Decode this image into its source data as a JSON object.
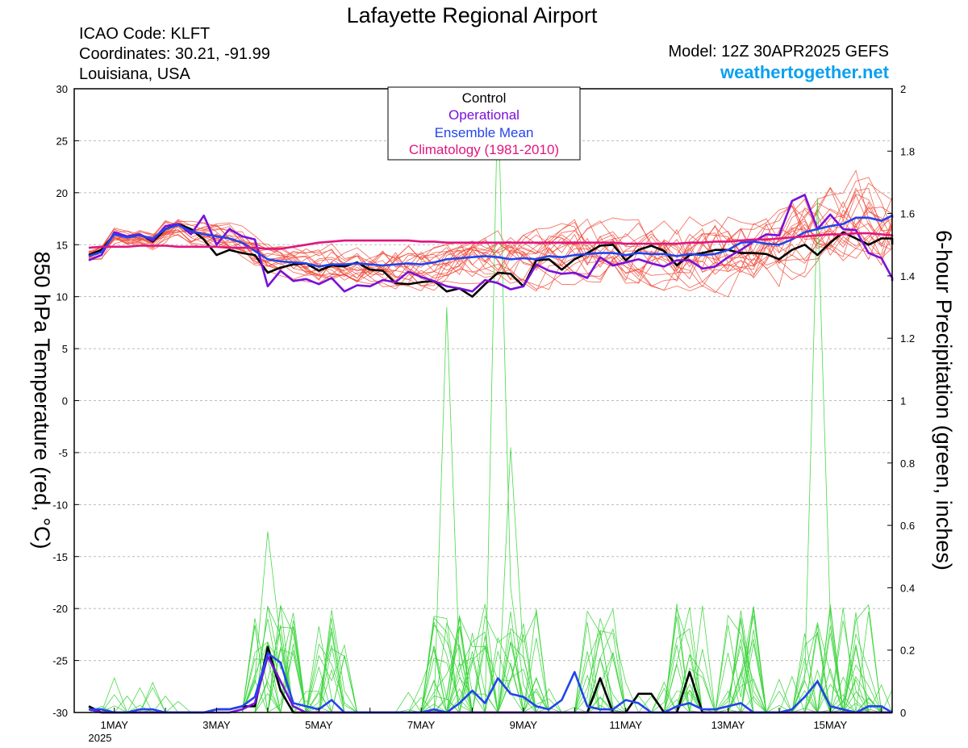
{
  "header": {
    "title": "Lafayette Regional Airport",
    "icao": "ICAO Code: KLFT",
    "coords": "Coordinates: 30.21, -91.99",
    "location": "Louisiana, USA",
    "model": "Model: 12Z 30APR2025 GEFS",
    "brand": "weathertogether.net"
  },
  "legend": {
    "control": "Control",
    "operational": "Operational",
    "ensemble_mean": "Ensemble Mean",
    "climatology": "Climatology (1981-2010)"
  },
  "colors": {
    "control": "#000000",
    "operational": "#7a10d8",
    "ensemble_mean": "#2244ee",
    "climatology": "#e0157f",
    "members_temp": "#f04a3a",
    "members_precip": "#36d436",
    "brand": "#0aa0f0",
    "grid": "#bbbbbb"
  },
  "chart_data": {
    "type": "line",
    "x_unit": "date (6-hourly steps from 30 Apr 2025 12Z)",
    "x_ticks": [
      "1MAY",
      "3MAY",
      "5MAY",
      "7MAY",
      "9MAY",
      "11MAY",
      "13MAY",
      "15MAY"
    ],
    "x_year_label": "2025",
    "y_left": {
      "label": "850 hPa Temperature (red, °C)",
      "range": [
        -30,
        30
      ],
      "ticks": [
        "30",
        "25",
        "20",
        "15",
        "10",
        "5",
        "0",
        "-5",
        "-10",
        "-15",
        "-20",
        "-25",
        "-30"
      ]
    },
    "y_right": {
      "label": "6-hour Precipitation (green, inches)",
      "range": [
        0,
        2
      ],
      "ticks": [
        "2",
        "1.8",
        "1.6",
        "1.4",
        "1.2",
        "1",
        "0.8",
        "0.6",
        "0.4",
        "0.2",
        "0"
      ]
    },
    "grid": "dashed horizontal",
    "legend_placement": "top-center",
    "temperature_series": [
      {
        "name": "Control",
        "values": [
          14,
          14.5,
          16,
          15.8,
          16,
          15.3,
          16.5,
          17,
          16.5,
          15.5,
          14,
          14.5,
          14.2,
          14,
          12.3,
          12.8,
          13.1,
          13.2,
          12.5,
          13,
          12.9,
          13.3,
          12.6,
          12.5,
          11.3,
          11.2,
          11.4,
          11.5,
          10.5,
          10.8,
          10,
          11.2,
          12.3,
          12.2,
          11,
          13.5,
          13.6,
          12.6,
          13.6,
          14.2,
          14.9,
          15,
          13.5,
          14.5,
          14.9,
          14.4,
          13,
          14,
          14.2,
          14.5,
          14.5,
          14.2,
          14.2,
          14.1,
          13.6,
          14.5,
          15,
          14,
          15.2,
          16.2,
          15.6,
          15,
          15.6,
          15.6,
          15
        ]
      },
      {
        "name": "Operational",
        "values": [
          13.5,
          14,
          16.2,
          15.8,
          16,
          15.4,
          16.8,
          17,
          16,
          17.8,
          15,
          16.5,
          15.8,
          15.5,
          11,
          12.5,
          11.5,
          11.7,
          11.2,
          11.8,
          10.5,
          11.1,
          11,
          11.6,
          11.4,
          12.4,
          11.9,
          11.5,
          11,
          10.8,
          10.5,
          11.6,
          11.3,
          10.7,
          11,
          13.1,
          12.5,
          12.2,
          12.3,
          11.8,
          13.8,
          13,
          13.3,
          13.6,
          13.2,
          12.9,
          13.5,
          13.5,
          12.7,
          12.9,
          13.8,
          14.5,
          15.3,
          16,
          15.9,
          19.2,
          19.8,
          16.5,
          17.9,
          16.5,
          16.4,
          14.2,
          13.7,
          11.8,
          11.5
        ]
      },
      {
        "name": "Ensemble Mean",
        "values": [
          13.9,
          14.3,
          16,
          15.7,
          15.9,
          15.6,
          16.5,
          16.9,
          16.3,
          16,
          15.8,
          15.6,
          15.2,
          14.4,
          13.6,
          13.4,
          13.3,
          13.2,
          12.9,
          13.1,
          13.1,
          13.2,
          13.1,
          13,
          13.1,
          13.2,
          13.1,
          13.3,
          13.6,
          13.7,
          13.8,
          13.9,
          13.8,
          13.6,
          13.7,
          13.6,
          13.9,
          13.8,
          14,
          14.1,
          14.2,
          14.2,
          14,
          14.2,
          14.1,
          14.1,
          13.9,
          14.1,
          14,
          14.1,
          14.5,
          15.2,
          15.3,
          15.1,
          15,
          15.5,
          16.2,
          16.5,
          16.8,
          17,
          17.6,
          17.6,
          17.3,
          17.8,
          17.6
        ]
      },
      {
        "name": "Climatology (1981-2010)",
        "values": [
          14.7,
          14.8,
          14.8,
          14.8,
          14.9,
          14.9,
          14.9,
          14.8,
          14.8,
          14.8,
          14.8,
          14.7,
          14.7,
          14.7,
          14.6,
          14.6,
          14.8,
          15,
          15.2,
          15.3,
          15.4,
          15.4,
          15.4,
          15.4,
          15.4,
          15.4,
          15.3,
          15.3,
          15.2,
          15.2,
          15.2,
          15.2,
          15.2,
          15.2,
          15.2,
          15.2,
          15.2,
          15.2,
          15.2,
          15.2,
          15.2,
          15.2,
          15.1,
          15.1,
          15.1,
          15.1,
          15.1,
          15.2,
          15.2,
          15.3,
          15.3,
          15.4,
          15.5,
          15.5,
          15.6,
          15.7,
          15.8,
          15.9,
          16,
          16,
          16.1,
          16.1,
          16,
          15.9,
          15.8
        ]
      }
    ],
    "precip_series": [
      {
        "name": "Control",
        "values": [
          0.02,
          0,
          0,
          0,
          0,
          0,
          0,
          0,
          0,
          0,
          0.01,
          0.01,
          0.02,
          0.02,
          0.21,
          0.07,
          0,
          0,
          0,
          0,
          0,
          0,
          0,
          0,
          0,
          0,
          0,
          0,
          0,
          0,
          0,
          0,
          0,
          0,
          0,
          0,
          0,
          0,
          0,
          0,
          0.11,
          0,
          0,
          0.06,
          0.06,
          0,
          0,
          0.13,
          0,
          0,
          0,
          0,
          0,
          0,
          0,
          0,
          0,
          0,
          0,
          0,
          0,
          0,
          0,
          0,
          0
        ]
      },
      {
        "name": "Operational",
        "values": [
          0.01,
          0,
          0,
          0,
          0,
          0,
          0,
          0,
          0,
          0,
          0,
          0,
          0.01,
          0.03,
          0.18,
          0.1,
          0.02,
          0,
          0,
          0,
          0,
          0,
          0,
          0,
          0,
          0,
          0,
          0,
          0,
          0,
          0,
          0,
          0,
          0,
          0,
          0,
          0,
          0,
          0,
          0,
          0,
          0,
          0,
          0,
          0,
          0,
          0,
          0,
          0,
          0,
          0,
          0,
          0,
          0,
          0,
          0,
          0,
          0,
          0,
          0,
          0,
          0,
          0,
          0,
          0
        ]
      },
      {
        "name": "Ensemble Mean",
        "values": [
          0.01,
          0.01,
          0,
          0,
          0.01,
          0.01,
          0,
          0,
          0,
          0,
          0.01,
          0.01,
          0.02,
          0.05,
          0.19,
          0.16,
          0.03,
          0.02,
          0.01,
          0.04,
          0,
          0,
          0,
          0,
          0,
          0,
          0,
          0.01,
          0,
          0.03,
          0.07,
          0.03,
          0.11,
          0.06,
          0.05,
          0.02,
          0.01,
          0.04,
          0.13,
          0.02,
          0.01,
          0.01,
          0.04,
          0.03,
          0,
          0,
          0.02,
          0.03,
          0.01,
          0.01,
          0.02,
          0.03,
          0,
          0,
          0,
          0.01,
          0.05,
          0.1,
          0.02,
          0.01,
          0,
          0.02,
          0.02,
          0,
          0
        ]
      }
    ],
    "member_count": 20
  }
}
